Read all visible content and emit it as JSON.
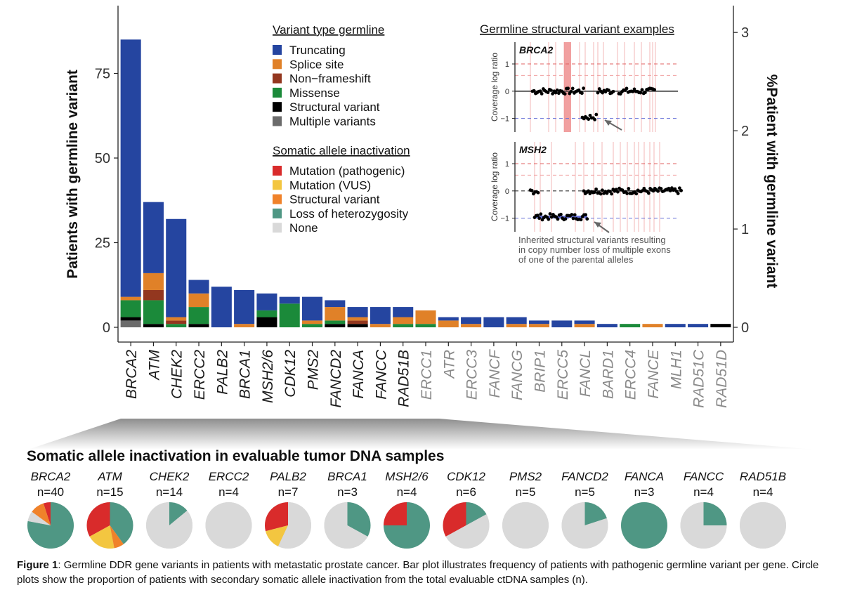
{
  "chart_data": [
    {
      "type": "bar",
      "stacked": true,
      "ylabel": "Patients with germline variant",
      "ylabel_right": "%Patient with germline variant",
      "y_ticks": [
        0,
        25,
        50,
        75
      ],
      "ylim": [
        0,
        90
      ],
      "y_right_ticks": [
        0,
        1,
        2,
        3
      ],
      "y_right_lim": [
        0,
        3.1
      ],
      "grid": false,
      "categories": [
        "BRCA2",
        "ATM",
        "CHEK2",
        "ERCC2",
        "PALB2",
        "BRCA1",
        "MSH2/6",
        "CDK12",
        "PMS2",
        "FANCD2",
        "FANCA",
        "FANCC",
        "RAD51B",
        "ERCC1",
        "ATR",
        "ERCC3",
        "FANCF",
        "FANCG",
        "BRIP1",
        "ERCC5",
        "FANCL",
        "BARD1",
        "ERCC4",
        "FANCE",
        "MLH1",
        "RAD51C",
        "RAD51D"
      ],
      "category_styles": [
        "bold",
        "bold",
        "bold",
        "bold",
        "bold",
        "bold",
        "bold",
        "bold",
        "bold",
        "bold",
        "bold",
        "bold",
        "bold",
        "grey",
        "grey",
        "grey",
        "grey",
        "grey",
        "grey",
        "grey",
        "grey",
        "grey",
        "grey",
        "grey",
        "grey",
        "grey",
        "grey"
      ],
      "legend_title": "Variant type germline",
      "legend_placement": "top-center",
      "series": [
        {
          "name": "Multiple variants",
          "color": "#6b6b6b",
          "values": [
            2,
            0,
            0,
            0,
            0,
            0,
            0,
            0,
            0,
            0,
            0,
            0,
            0,
            0,
            0,
            0,
            0,
            0,
            0,
            0,
            0,
            0,
            0,
            0,
            0,
            0,
            0
          ]
        },
        {
          "name": "Structural variant",
          "color": "#000000",
          "values": [
            1,
            1,
            0,
            1,
            0,
            0,
            3,
            0,
            0,
            1,
            1,
            0,
            0,
            0,
            0,
            0,
            0,
            0,
            0,
            0,
            0,
            0,
            0,
            0,
            0,
            0,
            1
          ]
        },
        {
          "name": "Missense",
          "color": "#1b8a3a",
          "values": [
            5,
            7,
            1,
            5,
            0,
            0,
            2,
            7,
            1,
            1,
            0,
            0,
            1,
            1,
            0,
            0,
            0,
            0,
            0,
            0,
            0,
            0,
            1,
            0,
            0,
            0,
            0
          ]
        },
        {
          "name": "Non−frameshift",
          "color": "#93371f",
          "values": [
            0,
            3,
            1,
            0,
            0,
            0,
            0,
            0,
            0,
            0,
            1,
            0,
            0,
            0,
            0,
            0,
            0,
            0,
            0,
            0,
            0,
            0,
            0,
            0,
            0,
            0,
            0
          ]
        },
        {
          "name": "Splice site",
          "color": "#e08128",
          "values": [
            1,
            5,
            1,
            4,
            0,
            1,
            0,
            0,
            1,
            4,
            1,
            1,
            2,
            4,
            2,
            1,
            0,
            1,
            1,
            0,
            1,
            0,
            0,
            1,
            0,
            0,
            0
          ]
        },
        {
          "name": "Truncating",
          "color": "#2545a0",
          "values": [
            76,
            21,
            29,
            4,
            12,
            10,
            5,
            2,
            7,
            2,
            3,
            5,
            3,
            0,
            1,
            2,
            3,
            2,
            1,
            2,
            1,
            1,
            0,
            0,
            1,
            1,
            0
          ]
        }
      ]
    },
    {
      "type": "pie",
      "title": "Somatic allele inactivation in evaluable tumor DNA samples",
      "legend_title": "Somatic allele inactivation",
      "legend": [
        {
          "name": "Mutation (pathogenic)",
          "color": "#d92b2b"
        },
        {
          "name": "Mutation (VUS)",
          "color": "#f3c640"
        },
        {
          "name": "Structural variant",
          "color": "#f0822a"
        },
        {
          "name": "Loss of heterozygosity",
          "color": "#4f9784"
        },
        {
          "name": "None",
          "color": "#d9d9d9"
        }
      ],
      "pies": [
        {
          "gene": "BRCA2",
          "n": "n=40",
          "values": [
            0.05,
            0.0,
            0.1,
            0.78,
            0.07
          ]
        },
        {
          "gene": "ATM",
          "n": "n=15",
          "values": [
            0.33,
            0.2,
            0.07,
            0.4,
            0.0
          ]
        },
        {
          "gene": "CHEK2",
          "n": "n=14",
          "values": [
            0.0,
            0.0,
            0.0,
            0.14,
            0.86
          ]
        },
        {
          "gene": "ERCC2",
          "n": "n=4",
          "values": [
            0.0,
            0.0,
            0.0,
            0.0,
            1.0
          ]
        },
        {
          "gene": "PALB2",
          "n": "n=7",
          "values": [
            0.29,
            0.14,
            0.0,
            0.0,
            0.57
          ]
        },
        {
          "gene": "BRCA1",
          "n": "n=3",
          "values": [
            0.0,
            0.0,
            0.0,
            0.33,
            0.67
          ]
        },
        {
          "gene": "MSH2/6",
          "n": "n=4",
          "values": [
            0.25,
            0.0,
            0.0,
            0.75,
            0.0
          ]
        },
        {
          "gene": "CDK12",
          "n": "n=6",
          "values": [
            0.33,
            0.0,
            0.0,
            0.17,
            0.5
          ]
        },
        {
          "gene": "PMS2",
          "n": "n=5",
          "values": [
            0.0,
            0.0,
            0.0,
            0.0,
            1.0
          ]
        },
        {
          "gene": "FANCD2",
          "n": "n=5",
          "values": [
            0.0,
            0.0,
            0.0,
            0.2,
            0.8
          ]
        },
        {
          "gene": "FANCA",
          "n": "n=3",
          "values": [
            0.0,
            0.0,
            0.0,
            1.0,
            0.0
          ]
        },
        {
          "gene": "FANCC",
          "n": "n=4",
          "values": [
            0.0,
            0.0,
            0.0,
            0.25,
            0.75
          ]
        },
        {
          "gene": "RAD51B",
          "n": "n=4",
          "values": [
            0.0,
            0.0,
            0.0,
            0.0,
            1.0
          ]
        }
      ]
    },
    {
      "type": "scatter",
      "title": "Germline structural variant examples",
      "panels": [
        {
          "label": "BRCA2",
          "ylabel": "Coverage log ratio",
          "y_ticks": [
            -1,
            0,
            1
          ],
          "ylim": [
            -1.5,
            1.8
          ],
          "ref_lines": [
            1,
            0.58,
            -1
          ]
        },
        {
          "label": "MSH2",
          "ylabel": "Coverage log ratio",
          "y_ticks": [
            -1,
            0,
            1
          ],
          "ylim": [
            -1.5,
            1.8
          ],
          "ref_lines": [
            1,
            0.58,
            -1
          ]
        }
      ],
      "annotation": "Inherited structural variants resulting in copy number loss of multiple exons of one of the parental alleles"
    }
  ],
  "caption": {
    "label": "Figure 1",
    "text": ": Germline DDR gene variants in patients with metastatic prostate cancer. Bar plot illustrates frequency of patients with pathogenic germline variant per gene. Circle plots show the proportion of patients with secondary somatic allele inactivation from the total evaluable ctDNA samples (n)."
  }
}
